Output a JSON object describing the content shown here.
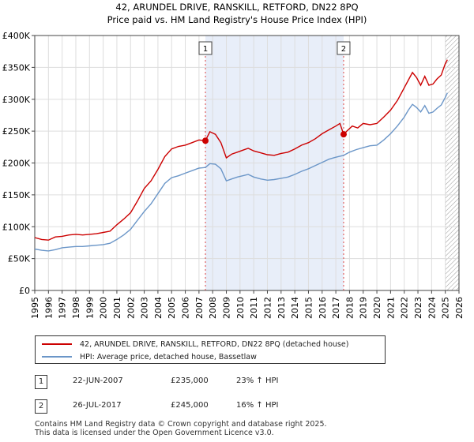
{
  "chart_data": {
    "type": "line",
    "title": "42, ARUNDEL DRIVE, RANSKILL, RETFORD, DN22 8PQ",
    "subtitle": "Price paid vs. HM Land Registry's House Price Index (HPI)",
    "xlim": [
      1995,
      2026
    ],
    "ylim": [
      0,
      400000
    ],
    "y_ticks": [
      0,
      50000,
      100000,
      150000,
      200000,
      250000,
      300000,
      350000,
      400000
    ],
    "y_tick_labels": [
      "£0",
      "£50K",
      "£100K",
      "£150K",
      "£200K",
      "£250K",
      "£300K",
      "£350K",
      "£400K"
    ],
    "x_ticks": [
      "1995",
      "1996",
      "1997",
      "1998",
      "1999",
      "2000",
      "2001",
      "2002",
      "2003",
      "2004",
      "2005",
      "2006",
      "2007",
      "2008",
      "2009",
      "2010",
      "2011",
      "2012",
      "2013",
      "2014",
      "2015",
      "2016",
      "2017",
      "2018",
      "2019",
      "2020",
      "2021",
      "2022",
      "2023",
      "2024",
      "2025",
      "2026"
    ],
    "shaded_range": [
      2007.47,
      2017.57
    ],
    "hatched_from": 2025.0,
    "series": [
      {
        "name": "42, ARUNDEL DRIVE, RANSKILL, RETFORD, DN22 8PQ (detached house)",
        "color": "#cc0000",
        "points": [
          [
            1995.0,
            83000
          ],
          [
            1995.5,
            80000
          ],
          [
            1996.0,
            79000
          ],
          [
            1996.5,
            84000
          ],
          [
            1997.0,
            85000
          ],
          [
            1997.5,
            87000
          ],
          [
            1998.0,
            88000
          ],
          [
            1998.5,
            87000
          ],
          [
            1999.0,
            88000
          ],
          [
            1999.5,
            89000
          ],
          [
            2000.0,
            91000
          ],
          [
            2000.5,
            93000
          ],
          [
            2001.0,
            103000
          ],
          [
            2001.5,
            112000
          ],
          [
            2002.0,
            122000
          ],
          [
            2002.5,
            140000
          ],
          [
            2003.0,
            160000
          ],
          [
            2003.5,
            172000
          ],
          [
            2004.0,
            190000
          ],
          [
            2004.5,
            210000
          ],
          [
            2005.0,
            222000
          ],
          [
            2005.5,
            226000
          ],
          [
            2006.0,
            228000
          ],
          [
            2006.5,
            232000
          ],
          [
            2007.0,
            236000
          ],
          [
            2007.47,
            235000
          ],
          [
            2007.8,
            249000
          ],
          [
            2008.2,
            245000
          ],
          [
            2008.6,
            232000
          ],
          [
            2009.0,
            208000
          ],
          [
            2009.4,
            214000
          ],
          [
            2009.8,
            217000
          ],
          [
            2010.2,
            220000
          ],
          [
            2010.6,
            223000
          ],
          [
            2011.0,
            219000
          ],
          [
            2011.5,
            216000
          ],
          [
            2012.0,
            213000
          ],
          [
            2012.5,
            212000
          ],
          [
            2013.0,
            215000
          ],
          [
            2013.5,
            217000
          ],
          [
            2014.0,
            222000
          ],
          [
            2014.5,
            228000
          ],
          [
            2015.0,
            232000
          ],
          [
            2015.5,
            238000
          ],
          [
            2016.0,
            246000
          ],
          [
            2016.5,
            252000
          ],
          [
            2017.0,
            258000
          ],
          [
            2017.3,
            262000
          ],
          [
            2017.57,
            245000
          ],
          [
            2017.8,
            250000
          ],
          [
            2018.2,
            258000
          ],
          [
            2018.6,
            255000
          ],
          [
            2019.0,
            262000
          ],
          [
            2019.5,
            260000
          ],
          [
            2020.0,
            262000
          ],
          [
            2020.5,
            272000
          ],
          [
            2021.0,
            283000
          ],
          [
            2021.5,
            298000
          ],
          [
            2022.0,
            318000
          ],
          [
            2022.3,
            330000
          ],
          [
            2022.6,
            342000
          ],
          [
            2022.9,
            334000
          ],
          [
            2023.2,
            322000
          ],
          [
            2023.5,
            336000
          ],
          [
            2023.8,
            322000
          ],
          [
            2024.1,
            324000
          ],
          [
            2024.4,
            332000
          ],
          [
            2024.7,
            338000
          ],
          [
            2025.0,
            356000
          ],
          [
            2025.15,
            362000
          ]
        ]
      },
      {
        "name": "HPI: Average price, detached house, Bassetlaw",
        "color": "#6b96c8",
        "points": [
          [
            1995.0,
            65000
          ],
          [
            1995.5,
            63000
          ],
          [
            1996.0,
            62000
          ],
          [
            1996.5,
            64000
          ],
          [
            1997.0,
            67000
          ],
          [
            1997.5,
            68000
          ],
          [
            1998.0,
            69000
          ],
          [
            1998.5,
            69000
          ],
          [
            1999.0,
            70000
          ],
          [
            1999.5,
            71000
          ],
          [
            2000.0,
            72000
          ],
          [
            2000.5,
            74000
          ],
          [
            2001.0,
            80000
          ],
          [
            2001.5,
            87000
          ],
          [
            2002.0,
            96000
          ],
          [
            2002.5,
            110000
          ],
          [
            2003.0,
            124000
          ],
          [
            2003.5,
            136000
          ],
          [
            2004.0,
            152000
          ],
          [
            2004.5,
            168000
          ],
          [
            2005.0,
            177000
          ],
          [
            2005.5,
            180000
          ],
          [
            2006.0,
            184000
          ],
          [
            2006.5,
            188000
          ],
          [
            2007.0,
            192000
          ],
          [
            2007.47,
            193000
          ],
          [
            2007.8,
            199000
          ],
          [
            2008.2,
            198000
          ],
          [
            2008.6,
            191000
          ],
          [
            2009.0,
            172000
          ],
          [
            2009.4,
            175000
          ],
          [
            2009.8,
            178000
          ],
          [
            2010.2,
            180000
          ],
          [
            2010.6,
            182000
          ],
          [
            2011.0,
            178000
          ],
          [
            2011.5,
            175000
          ],
          [
            2012.0,
            173000
          ],
          [
            2012.5,
            174000
          ],
          [
            2013.0,
            176000
          ],
          [
            2013.5,
            178000
          ],
          [
            2014.0,
            182000
          ],
          [
            2014.5,
            187000
          ],
          [
            2015.0,
            191000
          ],
          [
            2015.5,
            196000
          ],
          [
            2016.0,
            201000
          ],
          [
            2016.5,
            206000
          ],
          [
            2017.0,
            209000
          ],
          [
            2017.57,
            212000
          ],
          [
            2018.0,
            217000
          ],
          [
            2018.5,
            221000
          ],
          [
            2019.0,
            224000
          ],
          [
            2019.5,
            227000
          ],
          [
            2020.0,
            228000
          ],
          [
            2020.5,
            236000
          ],
          [
            2021.0,
            246000
          ],
          [
            2021.5,
            258000
          ],
          [
            2022.0,
            272000
          ],
          [
            2022.3,
            283000
          ],
          [
            2022.6,
            292000
          ],
          [
            2022.9,
            287000
          ],
          [
            2023.2,
            280000
          ],
          [
            2023.5,
            290000
          ],
          [
            2023.8,
            278000
          ],
          [
            2024.1,
            280000
          ],
          [
            2024.4,
            286000
          ],
          [
            2024.7,
            291000
          ],
          [
            2025.0,
            303000
          ],
          [
            2025.15,
            310000
          ]
        ]
      }
    ],
    "markers": [
      {
        "label": "1",
        "x": 2007.47,
        "y": 235000
      },
      {
        "label": "2",
        "x": 2017.57,
        "y": 245000
      }
    ]
  },
  "legend": {
    "property_label": "42, ARUNDEL DRIVE, RANSKILL, RETFORD, DN22 8PQ (detached house)",
    "hpi_label": "HPI: Average price, detached house, Bassetlaw"
  },
  "sales": [
    {
      "num": "1",
      "date": "22-JUN-2007",
      "price": "£235,000",
      "hpi": "23% ↑ HPI"
    },
    {
      "num": "2",
      "date": "26-JUL-2017",
      "price": "£245,000",
      "hpi": "16% ↑ HPI"
    }
  ],
  "footer": {
    "line1": "Contains HM Land Registry data © Crown copyright and database right 2025.",
    "line2": "This data is licensed under the Open Government Licence v3.0."
  },
  "colors": {
    "property": "#cc0000",
    "hpi": "#6b96c8",
    "shade": "#e8eef9",
    "grid": "#dddddd"
  }
}
